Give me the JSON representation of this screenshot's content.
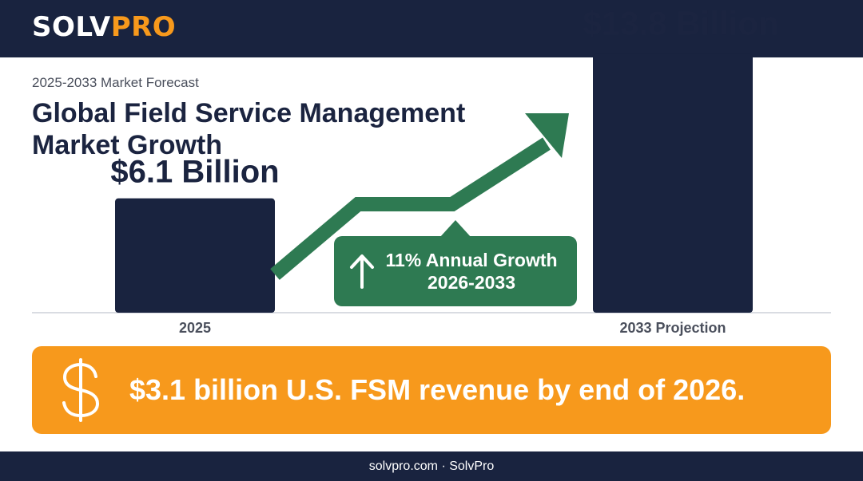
{
  "header": {
    "logo_part1": "SOLV",
    "logo_part2": "PRO",
    "brand_color": "#f7991c",
    "background": "#19233f"
  },
  "subtitle": "2025-2033 Market Forecast",
  "title": "Global Field Service Management Market Growth",
  "chart_data": {
    "type": "bar",
    "categories": [
      "2025",
      "2033 Projection"
    ],
    "values": [
      6.1,
      13.8
    ],
    "value_labels": [
      "$6.1 Billion",
      "$13.8 Billion"
    ],
    "unit": "Billion USD",
    "ylim": [
      0,
      16
    ],
    "bar_color": "#19233f",
    "grid": false,
    "growth_line_color": "#2e7a52",
    "annotation": {
      "line1": "11% Annual Growth",
      "line2": "2026-2033",
      "icon": "arrow-up-icon"
    }
  },
  "banner": {
    "icon": "dollar-icon",
    "text": "$3.1 billion U.S. FSM revenue by end of 2026.",
    "color": "#f7991c"
  },
  "footer": {
    "text": "solvpro.com · SolvPro"
  }
}
